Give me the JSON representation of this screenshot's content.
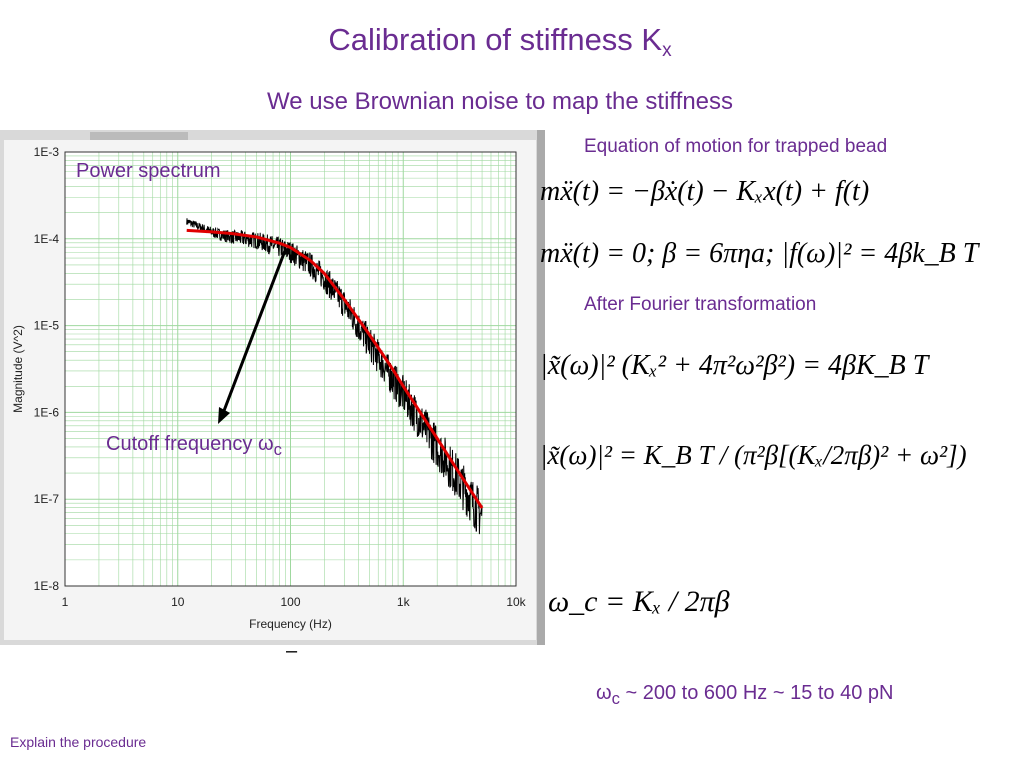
{
  "slide": {
    "title": "Calibration of stiffness K",
    "title_sub": "x",
    "subtitle": "We use Brownian noise to map the stiffness",
    "footer": "Explain the procedure",
    "dash": "–"
  },
  "labels": {
    "power_spectrum": "Power spectrum",
    "cutoff": "Cutoff frequency ω",
    "cutoff_sub": "c",
    "eq_motion_heading": "Equation of motion for trapped bead",
    "fourier_heading": "After Fourier transformation",
    "range_symbol": "ω",
    "range_sub": "c",
    "range_text": " ~ 200 to 600 Hz ~ 15 to 40 pN"
  },
  "equations": {
    "eq1": "mẍ(t) = −βẋ(t) − Kₓx(t) + f(t)",
    "eq2": "mẍ(t) = 0; β = 6πηa; |f(ω)|² = 4βk_B T",
    "eq3": "|x̃(ω)|² (Kₓ² + 4π²ω²β²) = 4βK_B T",
    "eq4": "|x̃(ω)|² = K_B T / (π²β[(Kₓ/2πβ)² + ω²])",
    "eq5": "ω_c = Kₓ / 2πβ"
  },
  "colors": {
    "accent": "#6a2c91",
    "fit_line": "#e00000",
    "data_line": "#000000",
    "grid": "#9fd89f"
  },
  "chart_data": {
    "type": "line",
    "xscale": "log",
    "yscale": "log",
    "xlabel": "Frequency (Hz)",
    "ylabel": "Magnitude (V^2)",
    "xlim": [
      1,
      10000
    ],
    "ylim": [
      1e-08,
      0.001
    ],
    "x_ticks": [
      "1",
      "10",
      "100",
      "1k",
      "10k"
    ],
    "y_ticks": [
      "1E-3",
      "1E-4",
      "1E-5",
      "1E-6",
      "1E-7",
      "1E-8"
    ],
    "grid": true,
    "series": [
      {
        "kind": "measured",
        "x": [
          12,
          15,
          20,
          25,
          30,
          40,
          50,
          60,
          80,
          100,
          150,
          200,
          300,
          400,
          500,
          700,
          1000,
          1500,
          2000,
          3000,
          4000,
          5000
        ],
        "y": [
          0.00016,
          0.00014,
          0.00012,
          0.00011,
          0.000105,
          0.0001,
          9.55e-05,
          8.91e-05,
          7.94e-05,
          7.08e-05,
          5.01e-05,
          3.55e-05,
          1.78e-05,
          1e-05,
          6.3e-06,
          3.2e-06,
          1.6e-06,
          7.1e-07,
          4e-07,
          1.8e-07,
          1e-07,
          6.3e-08
        ]
      },
      {
        "kind": "fit",
        "x": [
          12,
          20,
          30,
          50,
          80,
          100,
          150,
          200,
          300,
          500,
          800,
          1000,
          2000,
          3000,
          5000
        ],
        "y": [
          0.000125,
          0.00012,
          0.000115,
          0.000105,
          8.91e-05,
          7.94e-05,
          5.62e-05,
          3.98e-05,
          2e-05,
          7.9e-06,
          3.2e-06,
          2e-06,
          5e-07,
          2.2e-07,
          7.9e-08
        ]
      }
    ]
  }
}
